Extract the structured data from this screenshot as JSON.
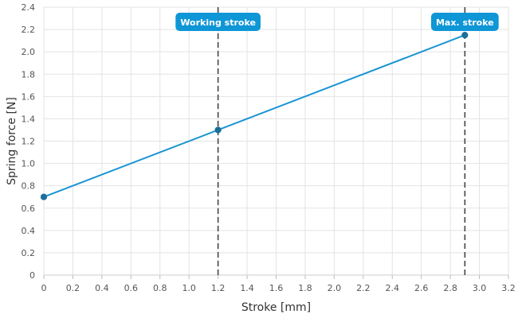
{
  "chart_data": {
    "type": "line",
    "xlabel": "Stroke [mm]",
    "ylabel": "Spring force [N]",
    "xlim": [
      0,
      3.2
    ],
    "ylim": [
      0,
      2.4
    ],
    "x_ticks": [
      "0",
      "0.2",
      "0.4",
      "0.6",
      "0.8",
      "1.0",
      "1.2",
      "1.4",
      "1.6",
      "1.8",
      "2.0",
      "2.2",
      "2.4",
      "2.6",
      "2.8",
      "3.0",
      "3.2"
    ],
    "y_ticks": [
      "0",
      "0.2",
      "0.4",
      "0.6",
      "0.8",
      "1.0",
      "1.2",
      "1.4",
      "1.6",
      "1.8",
      "2.0",
      "2.2",
      "2.4"
    ],
    "grid": true,
    "series": [
      {
        "color": "#1a95d3",
        "points": [
          {
            "x": 0,
            "y": 0.7
          },
          {
            "x": 1.2,
            "y": 1.3
          },
          {
            "x": 2.9,
            "y": 2.15
          }
        ]
      }
    ],
    "markers": [
      {
        "x": 1.2,
        "label": "Working stroke"
      },
      {
        "x": 2.9,
        "label": "Max. stroke"
      }
    ],
    "colors": {
      "line": "#1a95d3",
      "point": "#1c6e9a",
      "label_bg": "#0e96d6",
      "marker_line": "#444444",
      "grid": "#e3e3e3"
    }
  }
}
